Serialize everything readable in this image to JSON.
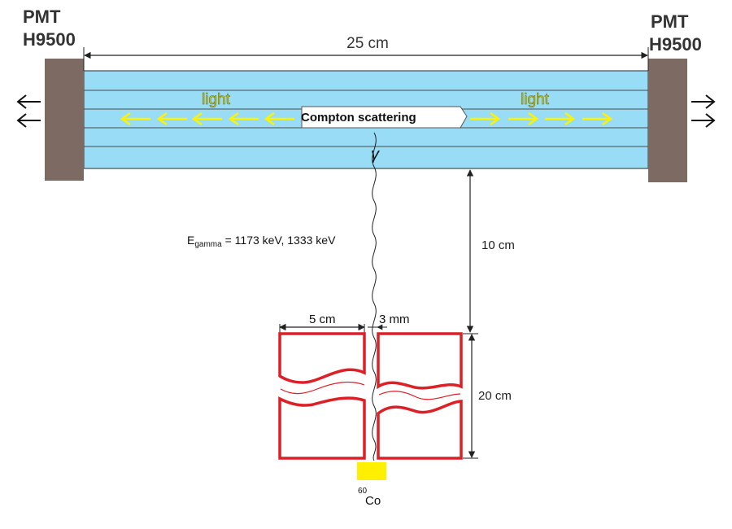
{
  "title": "",
  "pmt_left": {
    "line1": "PMT",
    "line2": "H9500"
  },
  "pmt_right": {
    "line1": "PMT",
    "line2": "H9500"
  },
  "dimensions": {
    "length": "25 cm",
    "distance": "10 cm",
    "height": "20 cm",
    "width": "5 cm",
    "gap": "3 mm"
  },
  "light_left": "light",
  "light_right": "light",
  "scattering_label": "Compton scattering",
  "gamma_symbol": "γ",
  "energy": {
    "prefix": "E",
    "subscript": "gamma",
    "values": " = 1173 keV,  1333 keV"
  },
  "source": {
    "mass_number": "60",
    "element": "Co"
  },
  "colors": {
    "scintillator": "#99dcf6",
    "scintillator_line": "#4a4a4a",
    "pmt": "#7d6b63",
    "arrow_light": "#fff200",
    "collimator": "#dd1f26",
    "source": "#ffef00"
  }
}
